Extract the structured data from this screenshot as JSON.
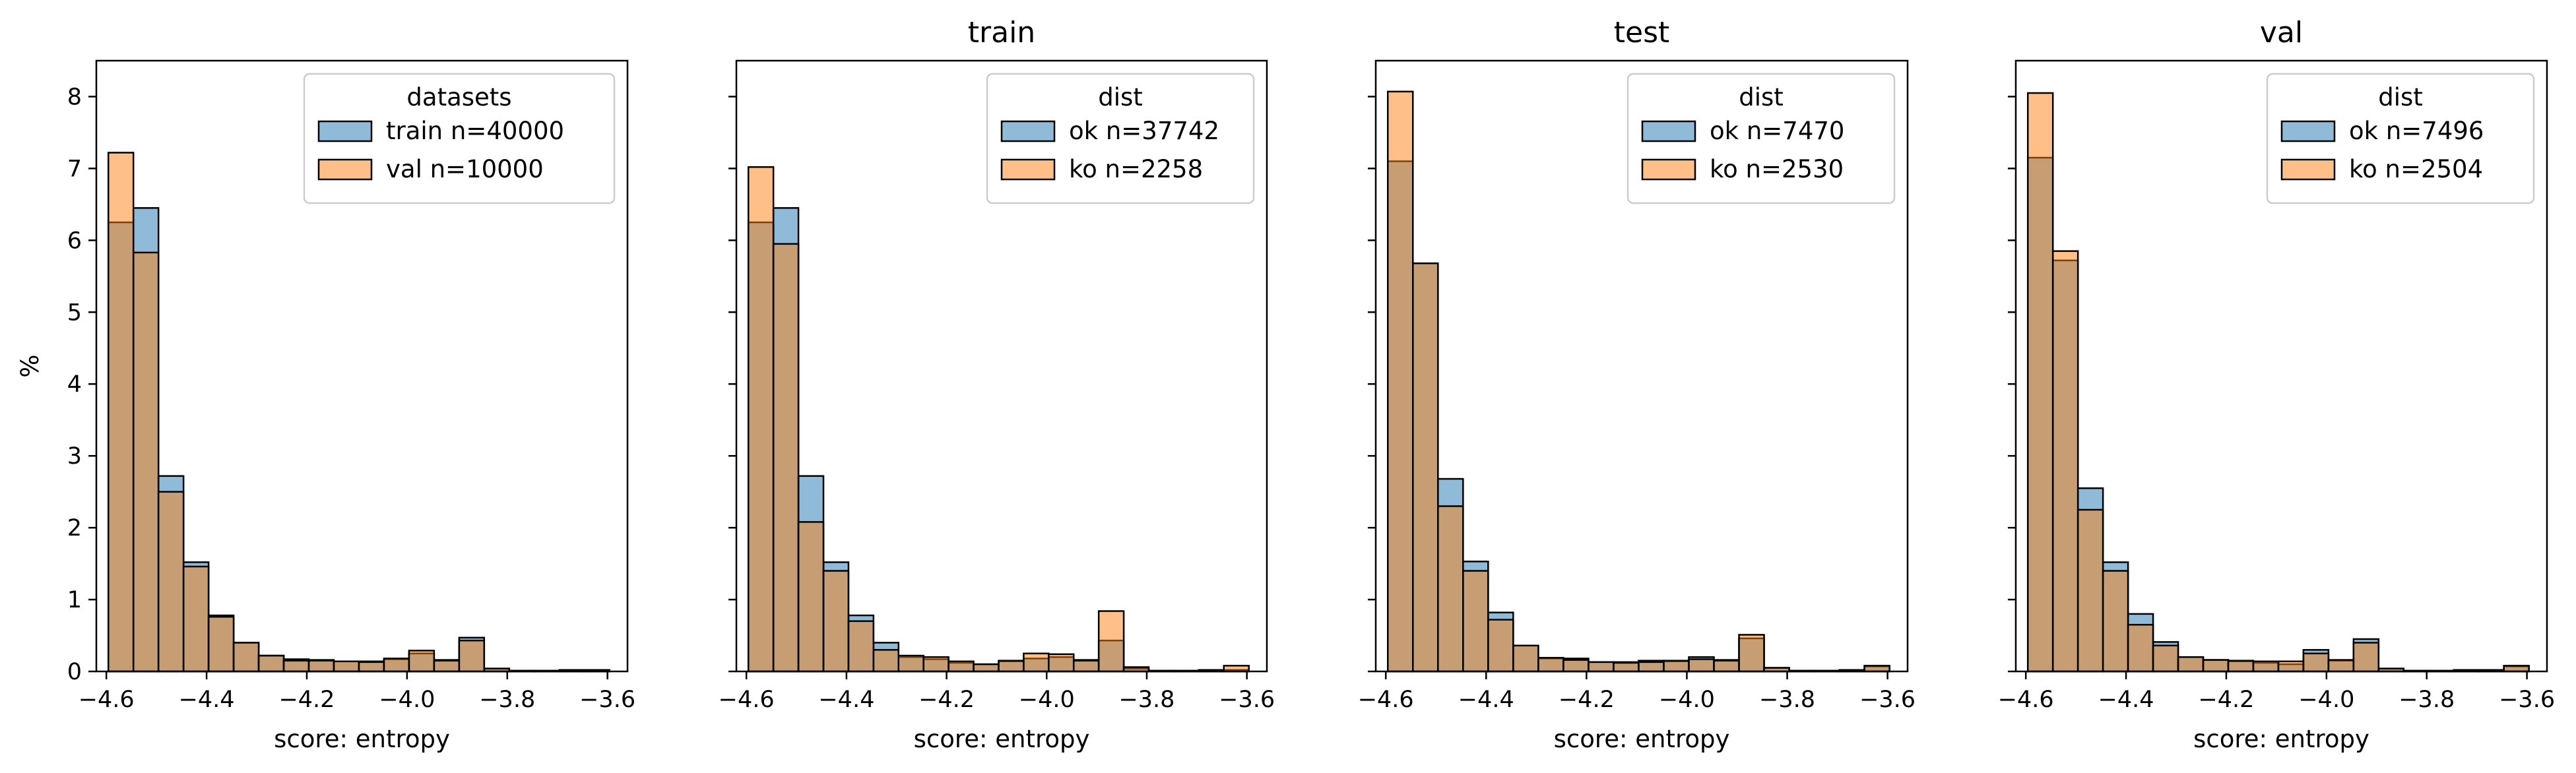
{
  "figure": {
    "colors": {
      "series1": "#1f77b4",
      "series2": "#ff7f0e",
      "bar_alpha": 0.5
    }
  },
  "chart_data": [
    {
      "type": "bar",
      "title": "",
      "xlabel": "score: entropy",
      "ylabel": "%",
      "xlim": [
        -4.62,
        -3.56
      ],
      "ylim": [
        0,
        8.5
      ],
      "xticks": [
        "−4.6",
        "−4.4",
        "−4.2",
        "−4.0",
        "−3.8",
        "−3.6"
      ],
      "yticks": [
        "0",
        "1",
        "2",
        "3",
        "4",
        "5",
        "6",
        "7",
        "8"
      ],
      "bin_edges": [
        -4.596,
        -4.546,
        -4.496,
        -4.446,
        -4.396,
        -4.346,
        -4.296,
        -4.246,
        -4.196,
        -4.146,
        -4.096,
        -4.046,
        -3.996,
        -3.946,
        -3.896,
        -3.846,
        -3.796,
        -3.746,
        -3.696,
        -3.646,
        -3.596
      ],
      "legend_title": "datasets",
      "legend_position": "upper right",
      "series": [
        {
          "name": "train n=40000",
          "values": [
            6.25,
            6.45,
            2.72,
            1.52,
            0.78,
            0.4,
            0.22,
            0.17,
            0.16,
            0.14,
            0.14,
            0.17,
            0.25,
            0.16,
            0.47,
            0.04,
            0.01,
            0.01,
            0.02,
            0.02
          ]
        },
        {
          "name": "val n=10000",
          "values": [
            7.22,
            5.83,
            2.5,
            1.46,
            0.76,
            0.4,
            0.22,
            0.15,
            0.15,
            0.14,
            0.13,
            0.18,
            0.29,
            0.15,
            0.43,
            0.04,
            0.01,
            0.01,
            0.02,
            0.02
          ]
        }
      ]
    },
    {
      "type": "bar",
      "title": "train",
      "xlabel": "score: entropy",
      "ylabel": "",
      "xlim": [
        -4.62,
        -3.56
      ],
      "ylim": [
        0,
        8.5
      ],
      "xticks": [
        "−4.6",
        "−4.4",
        "−4.2",
        "−4.0",
        "−3.8",
        "−3.6"
      ],
      "yticks": [
        "0",
        "1",
        "2",
        "3",
        "4",
        "5",
        "6",
        "7",
        "8"
      ],
      "bin_edges": [
        -4.596,
        -4.546,
        -4.496,
        -4.446,
        -4.396,
        -4.346,
        -4.296,
        -4.246,
        -4.196,
        -4.146,
        -4.096,
        -4.046,
        -3.996,
        -3.946,
        -3.896,
        -3.846,
        -3.796,
        -3.746,
        -3.696,
        -3.646,
        -3.596
      ],
      "legend_title": "dist",
      "legend_position": "upper right",
      "series": [
        {
          "name": "ok n=37742",
          "values": [
            6.25,
            6.45,
            2.72,
            1.52,
            0.78,
            0.4,
            0.2,
            0.17,
            0.12,
            0.1,
            0.14,
            0.18,
            0.2,
            0.16,
            0.43,
            0.04,
            0.01,
            0.01,
            0.02,
            0.02
          ]
        },
        {
          "name": "ko n=2258",
          "values": [
            7.02,
            5.95,
            2.08,
            1.4,
            0.7,
            0.3,
            0.22,
            0.2,
            0.14,
            0.1,
            0.15,
            0.25,
            0.24,
            0.15,
            0.84,
            0.06,
            0.01,
            0.01,
            0.02,
            0.08
          ]
        }
      ]
    },
    {
      "type": "bar",
      "title": "test",
      "xlabel": "score: entropy",
      "ylabel": "",
      "xlim": [
        -4.62,
        -3.56
      ],
      "ylim": [
        0,
        8.5
      ],
      "xticks": [
        "−4.6",
        "−4.4",
        "−4.2",
        "−4.0",
        "−3.8",
        "−3.6"
      ],
      "yticks": [
        "0",
        "1",
        "2",
        "3",
        "4",
        "5",
        "6",
        "7",
        "8"
      ],
      "bin_edges": [
        -4.596,
        -4.546,
        -4.496,
        -4.446,
        -4.396,
        -4.346,
        -4.296,
        -4.246,
        -4.196,
        -4.146,
        -4.096,
        -4.046,
        -3.996,
        -3.946,
        -3.896,
        -3.846,
        -3.796,
        -3.746,
        -3.696,
        -3.646,
        -3.596
      ],
      "legend_title": "dist",
      "legend_position": "upper right",
      "series": [
        {
          "name": "ok n=7470",
          "values": [
            7.1,
            5.68,
            2.68,
            1.53,
            0.82,
            0.36,
            0.18,
            0.18,
            0.13,
            0.13,
            0.15,
            0.14,
            0.2,
            0.16,
            0.46,
            0.05,
            0.01,
            0.01,
            0.02,
            0.07
          ]
        },
        {
          "name": "ko n=2530",
          "values": [
            8.07,
            5.68,
            2.3,
            1.4,
            0.72,
            0.36,
            0.19,
            0.16,
            0.13,
            0.12,
            0.13,
            0.15,
            0.17,
            0.15,
            0.51,
            0.05,
            0.01,
            0.01,
            0.02,
            0.08
          ]
        }
      ]
    },
    {
      "type": "bar",
      "title": "val",
      "xlabel": "score: entropy",
      "ylabel": "",
      "xlim": [
        -4.62,
        -3.56
      ],
      "ylim": [
        0,
        8.5
      ],
      "xticks": [
        "−4.6",
        "−4.4",
        "−4.2",
        "−4.0",
        "−3.8",
        "−3.6"
      ],
      "yticks": [
        "0",
        "1",
        "2",
        "3",
        "4",
        "5",
        "6",
        "7",
        "8"
      ],
      "bin_edges": [
        -4.596,
        -4.546,
        -4.496,
        -4.446,
        -4.396,
        -4.346,
        -4.296,
        -4.246,
        -4.196,
        -4.146,
        -4.096,
        -4.046,
        -3.996,
        -3.946,
        -3.896,
        -3.846,
        -3.796,
        -3.746,
        -3.696,
        -3.646,
        -3.596
      ],
      "legend_title": "dist",
      "legend_position": "upper right",
      "series": [
        {
          "name": "ok n=7496",
          "values": [
            7.15,
            5.72,
            2.55,
            1.52,
            0.8,
            0.41,
            0.2,
            0.16,
            0.14,
            0.12,
            0.1,
            0.3,
            0.15,
            0.45,
            0.04,
            0.01,
            0.01,
            0.02,
            0.02,
            0.07
          ]
        },
        {
          "name": "ko n=2504",
          "values": [
            8.05,
            5.85,
            2.25,
            1.4,
            0.65,
            0.36,
            0.2,
            0.16,
            0.15,
            0.14,
            0.14,
            0.25,
            0.16,
            0.4,
            0.04,
            0.01,
            0.01,
            0.02,
            0.02,
            0.08
          ]
        }
      ]
    }
  ]
}
